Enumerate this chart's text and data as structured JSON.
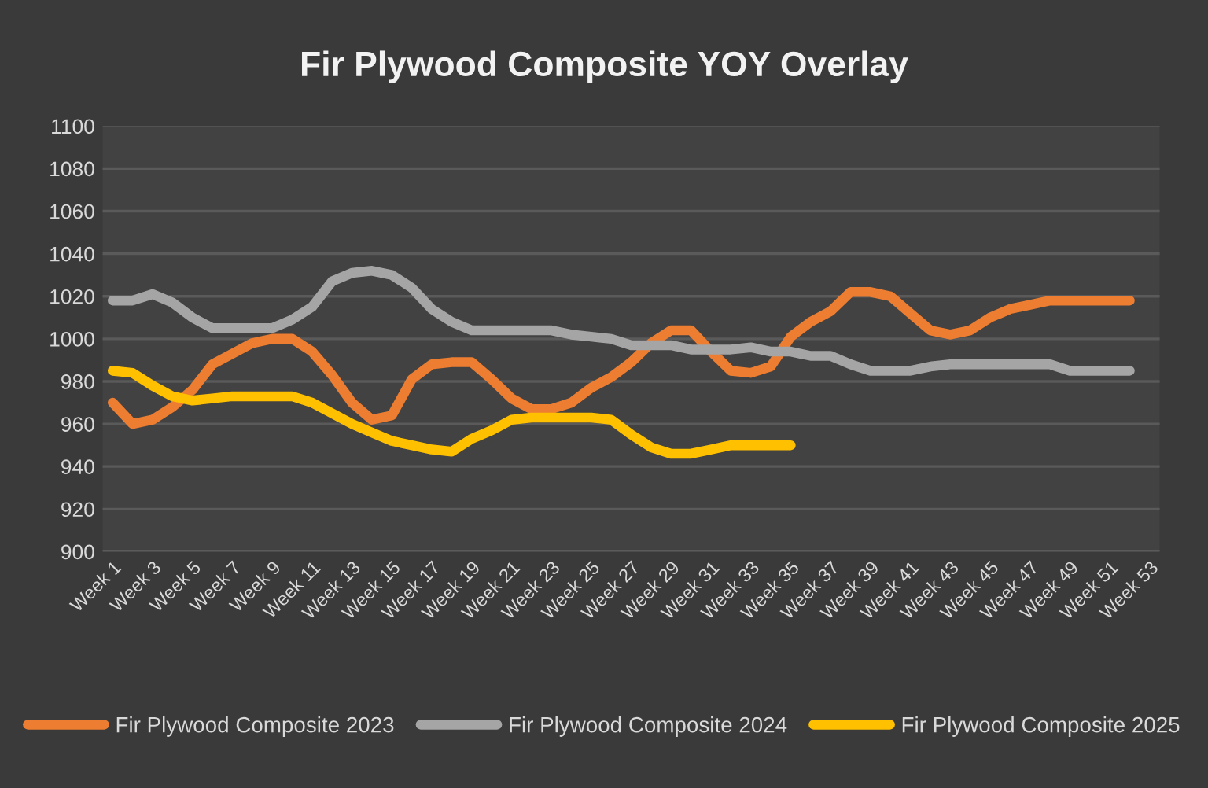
{
  "chart_data": {
    "type": "line",
    "title": "Fir Plywood Composite YOY Overlay",
    "categories": [
      "Week 1",
      null,
      "Week 3",
      null,
      "Week 5",
      null,
      "Week 7",
      null,
      "Week 9",
      null,
      "Week 11",
      null,
      "Week 13",
      null,
      "Week 15",
      null,
      "Week 17",
      null,
      "Week 19",
      null,
      "Week 21",
      null,
      "Week 23",
      null,
      "Week 25",
      null,
      "Week 27",
      null,
      "Week 29",
      null,
      "Week 31",
      null,
      "Week 33",
      null,
      "Week 35",
      null,
      "Week 37",
      null,
      "Week 39",
      null,
      "Week 41",
      null,
      "Week 43",
      null,
      "Week 45",
      null,
      "Week 47",
      null,
      "Week 49",
      null,
      "Week 51",
      null,
      "Week 53"
    ],
    "series": [
      {
        "name": "Fir Plywood Composite 2023",
        "color": "#ed7d31",
        "values": [
          970,
          960,
          962,
          968,
          976,
          988,
          993,
          998,
          1000,
          1000,
          994,
          983,
          970,
          962,
          964,
          981,
          988,
          989,
          989,
          981,
          972,
          967,
          967,
          970,
          977,
          982,
          989,
          998,
          1004,
          1004,
          994,
          985,
          984,
          987,
          1001,
          1008,
          1013,
          1022,
          1022,
          1020,
          1012,
          1004,
          1002,
          1004,
          1010,
          1014,
          1016,
          1018,
          1018,
          1018,
          1018,
          1018,
          null
        ]
      },
      {
        "name": "Fir Plywood Composite 2024",
        "color": "#a5a5a5",
        "values": [
          1018,
          1018,
          1021,
          1017,
          1010,
          1005,
          1005,
          1005,
          1005,
          1009,
          1015,
          1027,
          1031,
          1032,
          1030,
          1024,
          1014,
          1008,
          1004,
          1004,
          1004,
          1004,
          1004,
          1002,
          1001,
          1000,
          997,
          997,
          997,
          995,
          995,
          995,
          996,
          994,
          994,
          992,
          992,
          988,
          985,
          985,
          985,
          987,
          988,
          988,
          988,
          988,
          988,
          988,
          985,
          985,
          985,
          985,
          null
        ]
      },
      {
        "name": "Fir Plywood Composite 2025",
        "color": "#ffc000",
        "values": [
          985,
          984,
          978,
          973,
          971,
          972,
          973,
          973,
          973,
          973,
          970,
          965,
          960,
          956,
          952,
          950,
          948,
          947,
          953,
          957,
          962,
          963,
          963,
          963,
          963,
          962,
          955,
          949,
          946,
          946,
          948,
          950,
          950,
          950,
          950,
          null,
          null,
          null,
          null,
          null,
          null,
          null,
          null,
          null,
          null,
          null,
          null,
          null,
          null,
          null,
          null,
          null,
          null
        ]
      }
    ],
    "ylim": [
      900,
      1100
    ],
    "yticks": [
      900,
      920,
      940,
      960,
      980,
      1000,
      1020,
      1040,
      1060,
      1080,
      1100
    ],
    "grid": "y",
    "legend": "bottom",
    "marker": "none",
    "line_style": "solid"
  }
}
